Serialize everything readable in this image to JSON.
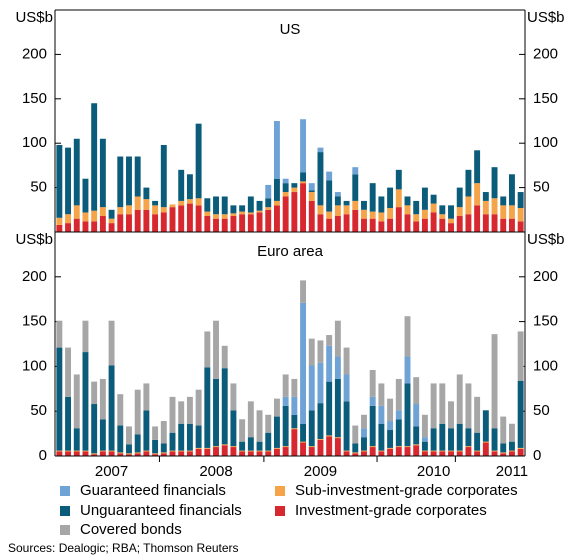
{
  "chart_data": [
    {
      "type": "bar",
      "title": "US",
      "unit": "US$b",
      "stacked": true,
      "ylim": [
        0,
        250
      ],
      "yticks": [
        50,
        100,
        150,
        200
      ],
      "series": [
        {
          "name": "Investment-grade corporates",
          "color": "#d7282f",
          "values": [
            8,
            10,
            15,
            12,
            12,
            18,
            10,
            20,
            20,
            25,
            25,
            20,
            22,
            28,
            30,
            32,
            30,
            18,
            15,
            15,
            18,
            20,
            20,
            22,
            25,
            30,
            40,
            45,
            55,
            35,
            20,
            15,
            18,
            20,
            25,
            15,
            15,
            12,
            15,
            28,
            20,
            12,
            15,
            22,
            15,
            10,
            18,
            20,
            30,
            20,
            20,
            15,
            15,
            12
          ]
        },
        {
          "name": "Sub-investment-grade corporates",
          "color": "#f5a44a",
          "values": [
            8,
            10,
            15,
            10,
            12,
            10,
            5,
            8,
            10,
            15,
            12,
            10,
            6,
            3,
            5,
            5,
            8,
            5,
            5,
            5,
            3,
            3,
            2,
            2,
            3,
            5,
            5,
            5,
            2,
            10,
            10,
            8,
            12,
            10,
            10,
            10,
            8,
            10,
            12,
            20,
            10,
            8,
            10,
            10,
            5,
            5,
            10,
            20,
            25,
            15,
            18,
            15,
            15,
            15
          ]
        },
        {
          "name": "Unguaranteed financials",
          "color": "#0b5c7a",
          "values": [
            82,
            75,
            75,
            38,
            121,
            77,
            10,
            57,
            55,
            45,
            13,
            5,
            70,
            0,
            35,
            28,
            84,
            15,
            20,
            20,
            9,
            7,
            18,
            11,
            10,
            25,
            10,
            5,
            10,
            2,
            60,
            35,
            10,
            5,
            30,
            10,
            32,
            18,
            23,
            22,
            10,
            15,
            25,
            10,
            10,
            15,
            22,
            30,
            37,
            10,
            35,
            10,
            35,
            18
          ]
        },
        {
          "name": "Guaranteed financials",
          "color": "#6fa3d6",
          "values": [
            0,
            0,
            0,
            0,
            0,
            0,
            0,
            0,
            0,
            0,
            0,
            0,
            0,
            0,
            0,
            0,
            0,
            0,
            0,
            0,
            0,
            0,
            0,
            0,
            15,
            65,
            5,
            0,
            60,
            8,
            5,
            10,
            5,
            0,
            8,
            0,
            0,
            0,
            0,
            0,
            0,
            0,
            0,
            0,
            0,
            0,
            0,
            0,
            0,
            0,
            0,
            0,
            0,
            0
          ]
        }
      ]
    },
    {
      "type": "bar",
      "title": "Euro area",
      "unit": "US$b",
      "stacked": true,
      "ylim": [
        0,
        250
      ],
      "yticks": [
        0,
        50,
        100,
        150,
        200
      ],
      "categories": [
        null,
        null,
        null,
        null,
        null,
        null,
        "2007",
        null,
        null,
        null,
        null,
        null,
        null,
        null,
        null,
        null,
        null,
        null,
        "2008",
        null,
        null,
        null,
        null,
        null,
        null,
        null,
        null,
        null,
        null,
        null,
        "2009",
        null,
        null,
        null,
        null,
        null,
        null,
        null,
        null,
        null,
        null,
        null,
        null,
        "2010",
        null,
        null,
        null,
        null,
        null,
        null,
        null,
        null,
        "2011",
        null
      ],
      "series": [
        {
          "name": "Investment-grade corporates",
          "color": "#d7282f",
          "values": [
            5,
            5,
            5,
            5,
            2,
            5,
            5,
            3,
            2,
            3,
            5,
            2,
            3,
            5,
            5,
            5,
            8,
            8,
            10,
            12,
            10,
            5,
            5,
            5,
            5,
            8,
            10,
            30,
            15,
            10,
            18,
            22,
            20,
            5,
            3,
            5,
            10,
            5,
            8,
            10,
            10,
            12,
            5,
            5,
            5,
            5,
            5,
            10,
            5,
            15,
            5,
            3,
            5,
            8
          ]
        },
        {
          "name": "Sub-investment-grade corporates",
          "color": "#f5a44a",
          "values": [
            1,
            1,
            1,
            1,
            1,
            1,
            1,
            1,
            1,
            1,
            1,
            1,
            1,
            1,
            1,
            1,
            1,
            1,
            1,
            1,
            1,
            1,
            1,
            1,
            1,
            1,
            1,
            1,
            1,
            1,
            1,
            1,
            1,
            1,
            1,
            1,
            1,
            1,
            1,
            1,
            1,
            1,
            1,
            1,
            1,
            1,
            1,
            1,
            1,
            1,
            1,
            1,
            1,
            1
          ]
        },
        {
          "name": "Unguaranteed financials",
          "color": "#0b5c7a",
          "values": [
            115,
            60,
            25,
            110,
            55,
            35,
            95,
            30,
            10,
            20,
            45,
            15,
            10,
            20,
            30,
            30,
            25,
            90,
            75,
            85,
            40,
            10,
            15,
            10,
            20,
            35,
            45,
            15,
            20,
            40,
            40,
            60,
            65,
            55,
            10,
            15,
            45,
            30,
            20,
            30,
            70,
            20,
            10,
            25,
            30,
            25,
            30,
            20,
            20,
            35,
            25,
            10,
            10,
            75
          ]
        },
        {
          "name": "Guaranteed financials",
          "color": "#6fa3d6",
          "values": [
            0,
            0,
            0,
            0,
            0,
            0,
            0,
            0,
            0,
            0,
            0,
            0,
            0,
            0,
            0,
            0,
            0,
            0,
            0,
            0,
            0,
            0,
            0,
            0,
            0,
            0,
            10,
            20,
            135,
            50,
            45,
            40,
            25,
            30,
            0,
            10,
            10,
            20,
            10,
            10,
            30,
            25,
            5,
            0,
            0,
            0,
            0,
            0,
            0,
            0,
            0,
            0,
            0,
            0
          ]
        },
        {
          "name": "Covered bonds",
          "color": "#a6a6a6",
          "values": [
            30,
            55,
            60,
            35,
            25,
            45,
            50,
            35,
            20,
            50,
            30,
            15,
            25,
            40,
            25,
            30,
            40,
            40,
            65,
            25,
            30,
            25,
            40,
            35,
            20,
            20,
            25,
            20,
            25,
            30,
            25,
            12,
            40,
            30,
            20,
            15,
            30,
            25,
            25,
            35,
            45,
            30,
            25,
            50,
            45,
            30,
            55,
            50,
            40,
            0,
            105,
            30,
            20,
            55
          ]
        }
      ]
    }
  ],
  "source": "Sources: Dealogic; RBA; Thomson Reuters"
}
